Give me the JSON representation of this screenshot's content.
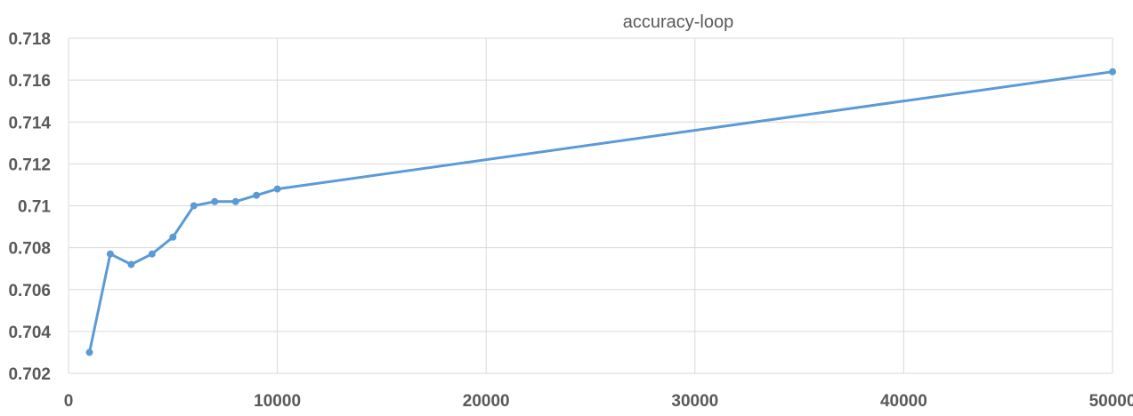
{
  "chart_data": {
    "type": "line",
    "title": "accuracy-loop",
    "xlabel": "",
    "ylabel": "",
    "xlim": [
      0,
      50000
    ],
    "ylim": [
      0.702,
      0.718
    ],
    "x_ticks": [
      0,
      10000,
      20000,
      30000,
      40000,
      50000
    ],
    "x_tick_labels": [
      "0",
      "10000",
      "20000",
      "30000",
      "40000",
      "50000"
    ],
    "y_ticks": [
      0.702,
      0.704,
      0.706,
      0.708,
      0.71,
      0.712,
      0.714,
      0.716,
      0.718
    ],
    "y_tick_labels": [
      "0.702",
      "0.704",
      "0.706",
      "0.708",
      "0.71",
      "0.712",
      "0.714",
      "0.716",
      "0.718"
    ],
    "grid": true,
    "legend": "none",
    "series": [
      {
        "x": [
          1000,
          2000,
          3000,
          4000,
          5000,
          6000,
          7000,
          8000,
          9000,
          10000,
          50000
        ],
        "values": [
          0.703,
          0.7077,
          0.7072,
          0.7077,
          0.7085,
          0.71,
          0.7102,
          0.7102,
          0.7105,
          0.7108,
          0.7164
        ],
        "color": "#5b9bd5"
      }
    ]
  }
}
